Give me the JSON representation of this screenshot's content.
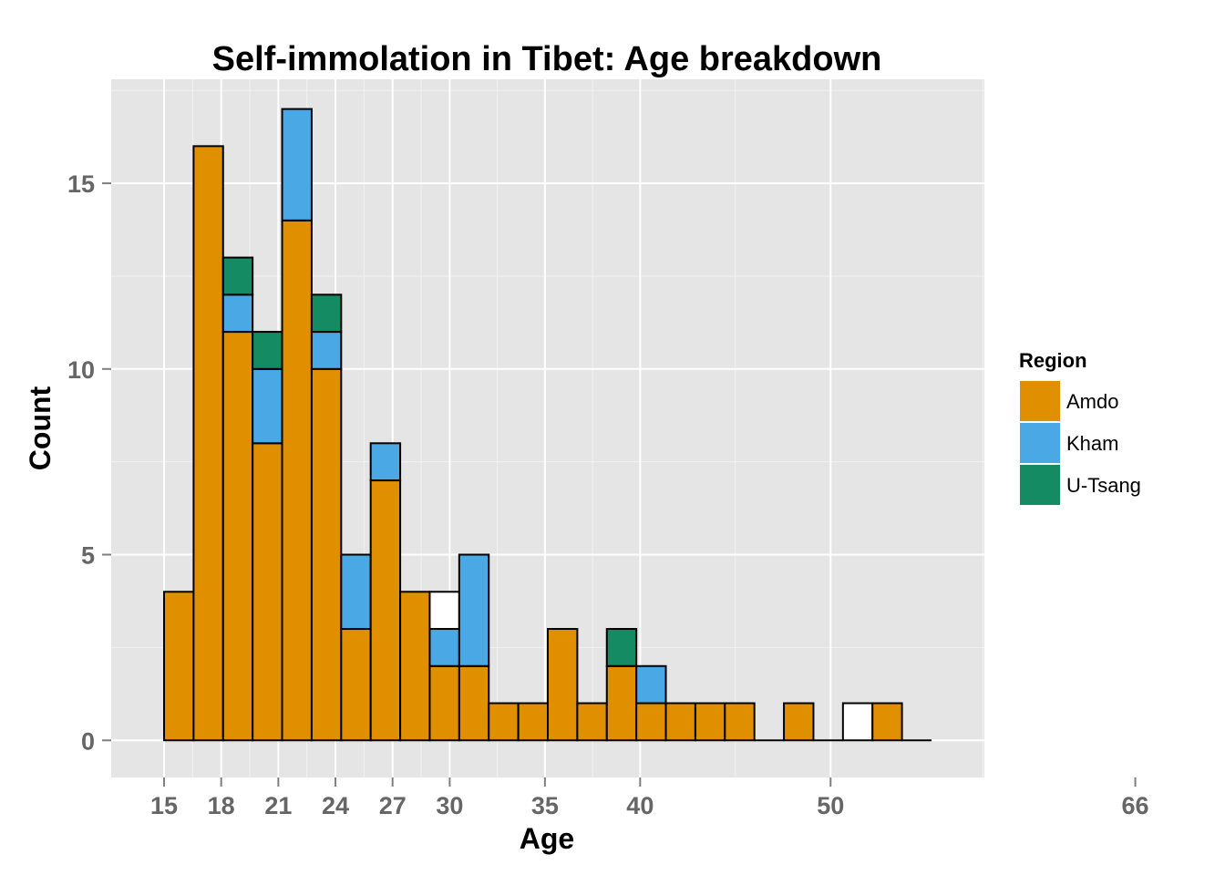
{
  "chart_data": {
    "type": "bar",
    "stacked": true,
    "title": "Self-immolation in Tibet: Age breakdown",
    "xlabel": "Age",
    "ylabel": "Count",
    "xlim": [
      13.5,
      71.5
    ],
    "ylim": [
      -1.0,
      17.8
    ],
    "bin_width": 1.55,
    "x_ticks": [
      {
        "value": 15,
        "label": "15"
      },
      {
        "value": 18,
        "label": "18"
      },
      {
        "value": 21,
        "label": "21"
      },
      {
        "value": 24,
        "label": "24"
      },
      {
        "value": 27,
        "label": "27"
      },
      {
        "value": 30,
        "label": "30"
      },
      {
        "value": 35,
        "label": "35"
      },
      {
        "value": 40,
        "label": "40"
      },
      {
        "value": 50,
        "label": "50"
      },
      {
        "value": 66,
        "label": "66"
      }
    ],
    "x_minor_ticks": [
      16.5,
      19.5,
      22.5,
      25.5,
      28.5,
      32.5,
      37.5,
      45,
      58
    ],
    "y_ticks": [
      {
        "value": 0,
        "label": "0"
      },
      {
        "value": 5,
        "label": "5"
      },
      {
        "value": 10,
        "label": "10"
      },
      {
        "value": 15,
        "label": "15"
      }
    ],
    "y_minor_ticks": [
      2.5,
      7.5,
      12.5,
      17.5
    ],
    "grid": true,
    "legend": {
      "title": "Region",
      "position": "right"
    },
    "series": [
      {
        "name": "Amdo",
        "color": "#E08F00",
        "values": [
          4,
          16,
          11,
          8,
          14,
          10,
          3,
          7,
          4,
          2,
          2,
          1,
          1,
          3,
          1,
          2,
          1,
          1,
          1,
          1,
          0,
          1,
          0,
          0,
          1,
          0
        ]
      },
      {
        "name": "Kham",
        "color": "#4AA8E4",
        "values": [
          0,
          0,
          1,
          2,
          3,
          1,
          2,
          1,
          0,
          1,
          3,
          0,
          0,
          0,
          0,
          0,
          1,
          0,
          0,
          0,
          0,
          0,
          0,
          0,
          0,
          0
        ]
      },
      {
        "name": "U-Tsang",
        "color": "#148B62",
        "values": [
          0,
          0,
          1,
          1,
          0,
          1,
          0,
          0,
          0,
          0,
          0,
          0,
          0,
          0,
          0,
          1,
          0,
          0,
          0,
          0,
          0,
          0,
          0,
          0,
          0,
          0
        ]
      },
      {
        "name": "",
        "color": "#FFFFFF",
        "values": [
          0,
          0,
          0,
          0,
          0,
          0,
          0,
          0,
          0,
          1,
          0,
          0,
          0,
          0,
          0,
          0,
          0,
          0,
          0,
          0,
          0,
          0,
          0,
          1,
          0,
          0
        ]
      }
    ]
  }
}
